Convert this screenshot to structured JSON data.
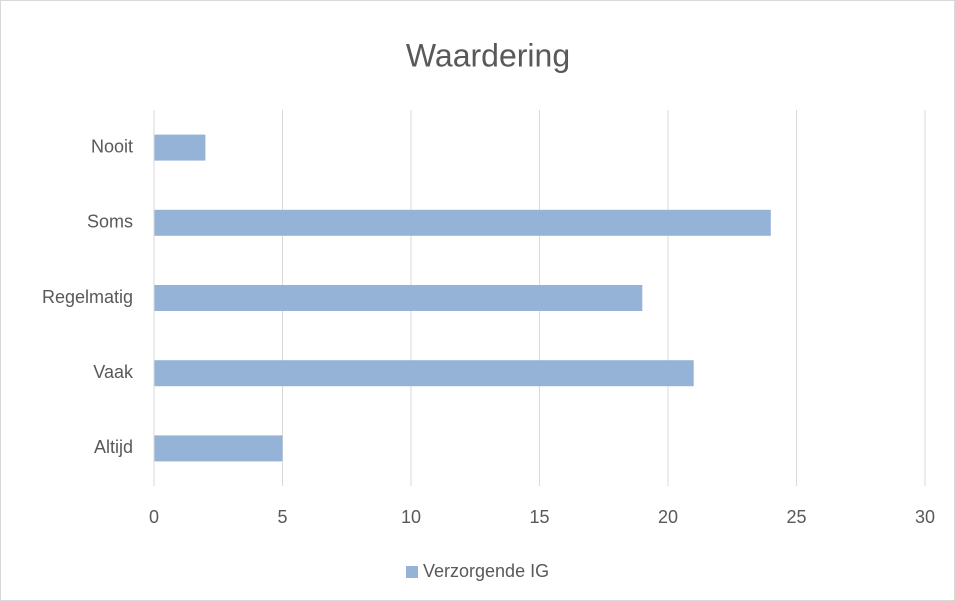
{
  "chart_data": {
    "type": "bar",
    "orientation": "horizontal",
    "title": "Waardering",
    "categories": [
      "Nooit",
      "Soms",
      "Regelmatig",
      "Vaak",
      "Altijd"
    ],
    "series": [
      {
        "name": "Verzorgende IG",
        "color": "#95b3d7",
        "values": [
          2,
          24,
          19,
          21,
          5
        ]
      }
    ],
    "xlim": [
      0,
      30
    ],
    "xticks": [
      0,
      5,
      10,
      15,
      20,
      25,
      30
    ],
    "grid": true,
    "legend": "bottom"
  }
}
